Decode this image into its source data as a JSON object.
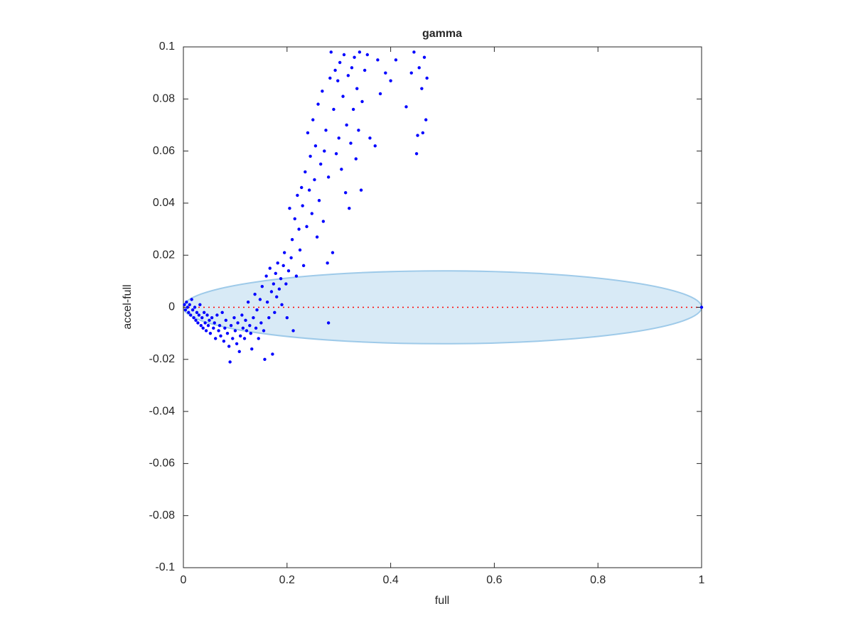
{
  "chart_data": {
    "type": "scatter",
    "title": "gamma",
    "xlabel": "full",
    "ylabel": "accel-full",
    "xlim": [
      0,
      1
    ],
    "ylim": [
      -0.1,
      0.1
    ],
    "xticks": [
      0,
      0.2,
      0.4,
      0.6,
      0.8,
      1
    ],
    "yticks": [
      -0.1,
      -0.08,
      -0.06,
      -0.04,
      -0.02,
      0,
      0.02,
      0.04,
      0.06,
      0.08,
      0.1
    ],
    "color": "#0000ff",
    "ellipse": {
      "center": [
        0.5,
        0
      ],
      "radii": [
        0.5,
        0.014
      ],
      "color": "#9ecae9"
    },
    "hline": {
      "y": 0,
      "x": [
        0,
        1
      ],
      "color": "#ff0000"
    },
    "x": [
      0.002,
      0.004,
      0.006,
      0.008,
      0.01,
      0.012,
      0.014,
      0.016,
      0.018,
      0.02,
      0.022,
      0.024,
      0.026,
      0.028,
      0.03,
      0.032,
      0.034,
      0.036,
      0.038,
      0.04,
      0.042,
      0.044,
      0.046,
      0.048,
      0.05,
      0.052,
      0.055,
      0.058,
      0.06,
      0.062,
      0.065,
      0.068,
      0.07,
      0.072,
      0.075,
      0.078,
      0.08,
      0.082,
      0.085,
      0.088,
      0.09,
      0.092,
      0.095,
      0.098,
      0.1,
      0.103,
      0.105,
      0.108,
      0.11,
      0.113,
      0.115,
      0.118,
      0.12,
      0.122,
      0.125,
      0.128,
      0.13,
      0.132,
      0.135,
      0.138,
      0.14,
      0.142,
      0.145,
      0.148,
      0.15,
      0.152,
      0.155,
      0.157,
      0.16,
      0.162,
      0.165,
      0.167,
      0.17,
      0.172,
      0.174,
      0.176,
      0.178,
      0.18,
      0.182,
      0.185,
      0.188,
      0.19,
      0.193,
      0.195,
      0.198,
      0.2,
      0.203,
      0.205,
      0.208,
      0.21,
      0.212,
      0.215,
      0.218,
      0.22,
      0.223,
      0.225,
      0.228,
      0.23,
      0.232,
      0.235,
      0.238,
      0.24,
      0.243,
      0.245,
      0.248,
      0.25,
      0.253,
      0.255,
      0.258,
      0.26,
      0.262,
      0.265,
      0.268,
      0.27,
      0.272,
      0.275,
      0.278,
      0.28,
      0.283,
      0.285,
      0.288,
      0.29,
      0.293,
      0.295,
      0.298,
      0.3,
      0.302,
      0.305,
      0.308,
      0.31,
      0.313,
      0.315,
      0.318,
      0.32,
      0.323,
      0.325,
      0.328,
      0.33,
      0.333,
      0.335,
      0.338,
      0.34,
      0.343,
      0.345,
      0.35,
      0.355,
      0.36,
      0.37,
      0.375,
      0.38,
      0.39,
      0.4,
      0.41,
      0.43,
      0.44,
      0.445,
      0.45,
      0.452,
      0.455,
      0.46,
      0.462,
      0.465,
      0.468,
      0.47,
      0.28,
      1
    ],
    "values": [
      0.001,
      -0.001,
      0.002,
      0,
      -0.002,
      0.001,
      -0.003,
      0.003,
      -0.001,
      -0.004,
      0,
      -0.005,
      -0.002,
      -0.006,
      -0.003,
      0.001,
      -0.007,
      -0.004,
      -0.008,
      -0.002,
      -0.006,
      -0.009,
      -0.003,
      -0.007,
      -0.005,
      -0.01,
      -0.004,
      -0.008,
      -0.006,
      -0.012,
      -0.003,
      -0.009,
      -0.007,
      -0.011,
      -0.002,
      -0.013,
      -0.008,
      -0.005,
      -0.01,
      -0.015,
      -0.021,
      -0.007,
      -0.012,
      -0.004,
      -0.009,
      -0.014,
      -0.006,
      -0.017,
      -0.011,
      -0.003,
      -0.008,
      -0.012,
      -0.005,
      -0.009,
      0.002,
      -0.007,
      -0.01,
      -0.016,
      -0.004,
      0.005,
      -0.008,
      -0.001,
      -0.012,
      0.003,
      -0.006,
      0.008,
      -0.009,
      -0.02,
      0.012,
      0.002,
      -0.004,
      0.015,
      0.006,
      -0.018,
      0.009,
      -0.002,
      0.013,
      0.004,
      0.017,
      0.007,
      0.011,
      0.001,
      0.016,
      0.021,
      0.009,
      -0.004,
      0.014,
      0.038,
      0.019,
      0.026,
      -0.009,
      0.034,
      0.012,
      0.043,
      0.03,
      0.022,
      0.046,
      0.039,
      0.016,
      0.052,
      0.031,
      0.067,
      0.045,
      0.058,
      0.036,
      0.072,
      0.049,
      0.062,
      0.027,
      0.078,
      0.041,
      0.055,
      0.083,
      0.033,
      0.06,
      0.068,
      0.017,
      0.05,
      0.088,
      0.098,
      0.021,
      0.076,
      0.091,
      0.059,
      0.087,
      0.065,
      0.094,
      0.053,
      0.081,
      0.097,
      0.044,
      0.07,
      0.089,
      0.038,
      0.063,
      0.092,
      0.076,
      0.096,
      0.057,
      0.084,
      0.068,
      0.098,
      0.045,
      0.079,
      0.091,
      0.097,
      0.065,
      0.062,
      0.095,
      0.082,
      0.09,
      0.087,
      0.095,
      0.077,
      0.09,
      0.098,
      0.059,
      0.066,
      0.092,
      0.084,
      0.067,
      0.096,
      0.072,
      0.088,
      -0.006,
      0
    ]
  }
}
